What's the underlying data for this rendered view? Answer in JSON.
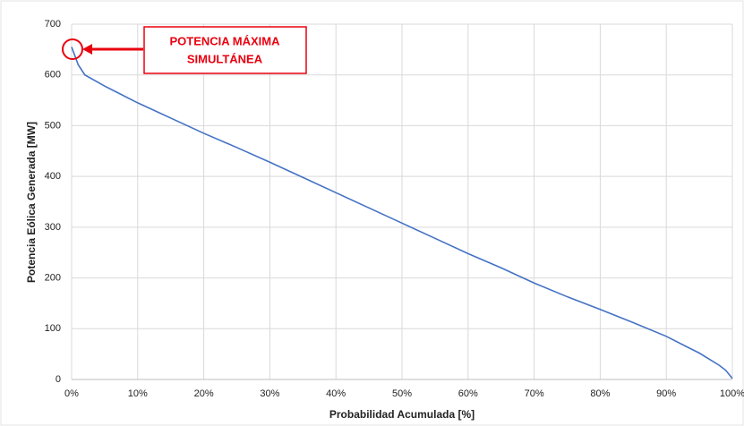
{
  "chart_data": {
    "type": "line",
    "x_label": "Probabilidad Acumulada [%]",
    "y_label": "Potencia Eólica Generada [MW]",
    "annotation": [
      "POTENCIA MÁXIMA",
      "SIMULTÁNEA"
    ],
    "x": [
      0,
      1,
      2,
      5,
      10,
      15,
      20,
      25,
      30,
      35,
      40,
      45,
      50,
      55,
      60,
      65,
      70,
      75,
      80,
      85,
      90,
      93,
      95,
      98,
      99,
      100
    ],
    "series": [
      {
        "color": "#4472c4",
        "values": [
          655,
          620,
          600,
          578,
          545,
          515,
          485,
          457,
          428,
          398,
          368,
          338,
          308,
          278,
          248,
          220,
          190,
          163,
          138,
          112,
          85,
          65,
          52,
          28,
          18,
          2
        ]
      }
    ],
    "xlim": [
      0,
      100
    ],
    "xticks": [
      {
        "value": 0,
        "label": "0%"
      },
      {
        "value": 10,
        "label": "10%"
      },
      {
        "value": 20,
        "label": "20%"
      },
      {
        "value": 30,
        "label": "30%"
      },
      {
        "value": 40,
        "label": "40%"
      },
      {
        "value": 50,
        "label": "50%"
      },
      {
        "value": 60,
        "label": "60%"
      },
      {
        "value": 70,
        "label": "70%"
      },
      {
        "value": 80,
        "label": "80%"
      },
      {
        "value": 90,
        "label": "90%"
      },
      {
        "value": 100,
        "label": "100%"
      }
    ],
    "ylim": [
      0,
      700
    ],
    "yticks": [
      0,
      100,
      200,
      300,
      400,
      500,
      600,
      700
    ],
    "grid": true
  }
}
